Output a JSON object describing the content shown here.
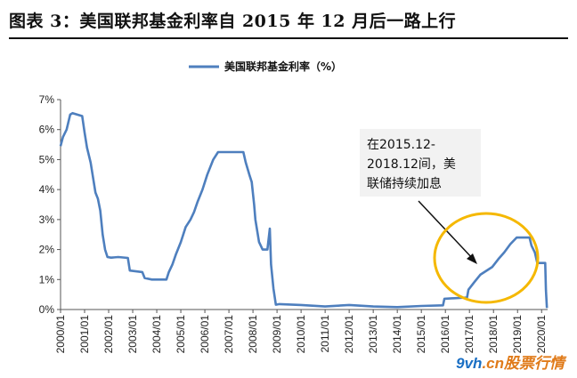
{
  "header": {
    "title": "图表 3：美国联邦基金利率自 2015 年 12 月后一路上行"
  },
  "watermark": {
    "brand": "9vh",
    "dot": ".cn",
    "text": "股票行情"
  },
  "chart_data": {
    "type": "line",
    "title": "",
    "xlabel": "",
    "ylabel": "",
    "legend": {
      "label": "美国联邦基金利率（%）",
      "placement": "top-center"
    },
    "ylim": [
      0,
      7
    ],
    "yticks": [
      "0%",
      "1%",
      "2%",
      "3%",
      "4%",
      "5%",
      "6%",
      "7%"
    ],
    "xlim": [
      2000.0,
      2020.25
    ],
    "xticks": [
      "2000/01",
      "2001/01",
      "2002/01",
      "2003/01",
      "2004/01",
      "2005/01",
      "2006/01",
      "2007/01",
      "2008/01",
      "2009/01",
      "2010/01",
      "2011/01",
      "2012/01",
      "2013/01",
      "2014/01",
      "2015/01",
      "2016/01",
      "2017/01",
      "2018/01",
      "2019/01",
      "2020/01"
    ],
    "grid": false,
    "line_color": "#4e7fbe",
    "annotation": {
      "text_lines": [
        "在2015.12-",
        "2018.12间，美",
        "联储持续加息"
      ],
      "box_fill": "#f2f2f2",
      "ellipse_color": "#f5b800"
    },
    "series": [
      {
        "name": "美国联邦基金利率（%）",
        "points": [
          [
            2000.0,
            5.45
          ],
          [
            2000.1,
            5.75
          ],
          [
            2000.25,
            6.0
          ],
          [
            2000.4,
            6.5
          ],
          [
            2000.5,
            6.55
          ],
          [
            2000.7,
            6.5
          ],
          [
            2000.9,
            6.45
          ],
          [
            2001.0,
            5.9
          ],
          [
            2001.1,
            5.4
          ],
          [
            2001.25,
            4.9
          ],
          [
            2001.35,
            4.4
          ],
          [
            2001.45,
            3.9
          ],
          [
            2001.55,
            3.7
          ],
          [
            2001.65,
            3.3
          ],
          [
            2001.75,
            2.5
          ],
          [
            2001.85,
            2.0
          ],
          [
            2001.95,
            1.75
          ],
          [
            2002.1,
            1.73
          ],
          [
            2002.4,
            1.75
          ],
          [
            2002.8,
            1.72
          ],
          [
            2002.88,
            1.3
          ],
          [
            2003.4,
            1.25
          ],
          [
            2003.5,
            1.05
          ],
          [
            2003.8,
            1.0
          ],
          [
            2004.4,
            1.0
          ],
          [
            2004.5,
            1.25
          ],
          [
            2004.65,
            1.5
          ],
          [
            2004.8,
            1.85
          ],
          [
            2005.0,
            2.25
          ],
          [
            2005.2,
            2.75
          ],
          [
            2005.4,
            3.0
          ],
          [
            2005.55,
            3.25
          ],
          [
            2005.7,
            3.6
          ],
          [
            2005.9,
            4.0
          ],
          [
            2006.1,
            4.5
          ],
          [
            2006.35,
            5.0
          ],
          [
            2006.55,
            5.25
          ],
          [
            2006.8,
            5.25
          ],
          [
            2007.2,
            5.25
          ],
          [
            2007.6,
            5.25
          ],
          [
            2007.7,
            4.9
          ],
          [
            2007.85,
            4.5
          ],
          [
            2007.95,
            4.25
          ],
          [
            2008.05,
            3.5
          ],
          [
            2008.1,
            3.0
          ],
          [
            2008.25,
            2.25
          ],
          [
            2008.4,
            2.0
          ],
          [
            2008.6,
            2.0
          ],
          [
            2008.7,
            2.7
          ],
          [
            2008.75,
            1.5
          ],
          [
            2008.85,
            0.7
          ],
          [
            2008.95,
            0.16
          ],
          [
            2009.1,
            0.18
          ],
          [
            2010.0,
            0.15
          ],
          [
            2011.0,
            0.1
          ],
          [
            2012.0,
            0.15
          ],
          [
            2013.0,
            0.1
          ],
          [
            2014.0,
            0.08
          ],
          [
            2015.0,
            0.12
          ],
          [
            2015.9,
            0.14
          ],
          [
            2015.96,
            0.36
          ],
          [
            2016.9,
            0.4
          ],
          [
            2016.96,
            0.66
          ],
          [
            2017.2,
            0.91
          ],
          [
            2017.45,
            1.16
          ],
          [
            2017.95,
            1.42
          ],
          [
            2018.2,
            1.68
          ],
          [
            2018.45,
            1.91
          ],
          [
            2018.7,
            2.18
          ],
          [
            2018.96,
            2.4
          ],
          [
            2019.5,
            2.4
          ],
          [
            2019.58,
            2.13
          ],
          [
            2019.72,
            1.9
          ],
          [
            2019.82,
            1.55
          ],
          [
            2020.15,
            1.55
          ],
          [
            2020.18,
            0.65
          ],
          [
            2020.22,
            0.05
          ]
        ]
      }
    ]
  }
}
